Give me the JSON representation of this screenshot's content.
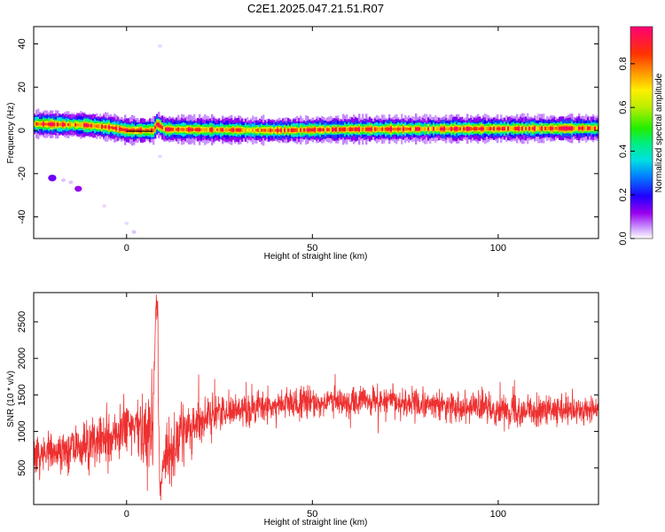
{
  "title": "C2E1.2025.047.21.51.R07",
  "chart_data": [
    {
      "type": "heatmap",
      "xlabel": "Height of straight line (km)",
      "ylabel": "Frequency (Hz)",
      "xlim": [
        -25,
        127
      ],
      "ylim": [
        -50,
        48
      ],
      "xticks": [
        0,
        50,
        100
      ],
      "yticks": [
        -40,
        -20,
        0,
        20,
        40
      ],
      "colorbar": {
        "label": "Normalized spectral amplitude",
        "range": [
          0,
          0.97
        ],
        "ticks": [
          "0.0",
          "0.2",
          "0.4",
          "0.6",
          "0.8"
        ],
        "tick_values": [
          0,
          0.2,
          0.4,
          0.6,
          0.8
        ]
      },
      "band": {
        "center_hz": [
          [
            -25,
            3
          ],
          [
            -12,
            2.5
          ],
          [
            -5,
            1.5
          ],
          [
            0,
            0
          ],
          [
            7,
            0
          ],
          [
            8,
            3
          ],
          [
            10,
            0.5
          ],
          [
            40,
            0
          ],
          [
            60,
            0.5
          ],
          [
            127,
            1
          ]
        ],
        "peak_amplitude": 0.9
      },
      "scatter_patches": [
        {
          "x": -20,
          "y": -22,
          "amp": 0.15
        },
        {
          "x": -17,
          "y": -23,
          "amp": 0.03
        },
        {
          "x": -15,
          "y": -24,
          "amp": 0.03
        },
        {
          "x": -13,
          "y": -27,
          "amp": 0.12
        },
        {
          "x": -6,
          "y": -35,
          "amp": 0.02
        },
        {
          "x": 0,
          "y": -43,
          "amp": 0.02
        },
        {
          "x": 2,
          "y": -47,
          "amp": 0.03
        },
        {
          "x": 9,
          "y": 39,
          "amp": 0.02
        },
        {
          "x": 9,
          "y": -12,
          "amp": 0.02
        }
      ]
    },
    {
      "type": "line",
      "xlabel": "Height of straight line (km)",
      "ylabel": "SNR (10 * v/v)",
      "xlim": [
        -25,
        127
      ],
      "ylim": [
        0,
        2900
      ],
      "xticks": [
        0,
        50,
        100
      ],
      "yticks": [
        500,
        1000,
        1500,
        2000,
        2500
      ],
      "color": "#ee3030",
      "trend": {
        "x": [
          -25,
          -15,
          -5,
          0,
          5,
          7,
          8,
          9,
          10,
          12,
          15,
          20,
          25,
          30,
          40,
          50,
          60,
          70,
          80,
          90,
          100,
          110,
          120,
          127
        ],
        "mean": [
          700,
          750,
          900,
          1050,
          1050,
          1000,
          2900,
          100,
          600,
          750,
          1000,
          1150,
          1280,
          1300,
          1350,
          1400,
          1400,
          1420,
          1360,
          1350,
          1300,
          1280,
          1270,
          1300
        ],
        "spread": [
          140,
          150,
          180,
          200,
          220,
          250,
          0,
          100,
          200,
          220,
          200,
          130,
          110,
          110,
          110,
          110,
          100,
          100,
          100,
          100,
          100,
          100,
          100,
          100
        ]
      }
    }
  ]
}
